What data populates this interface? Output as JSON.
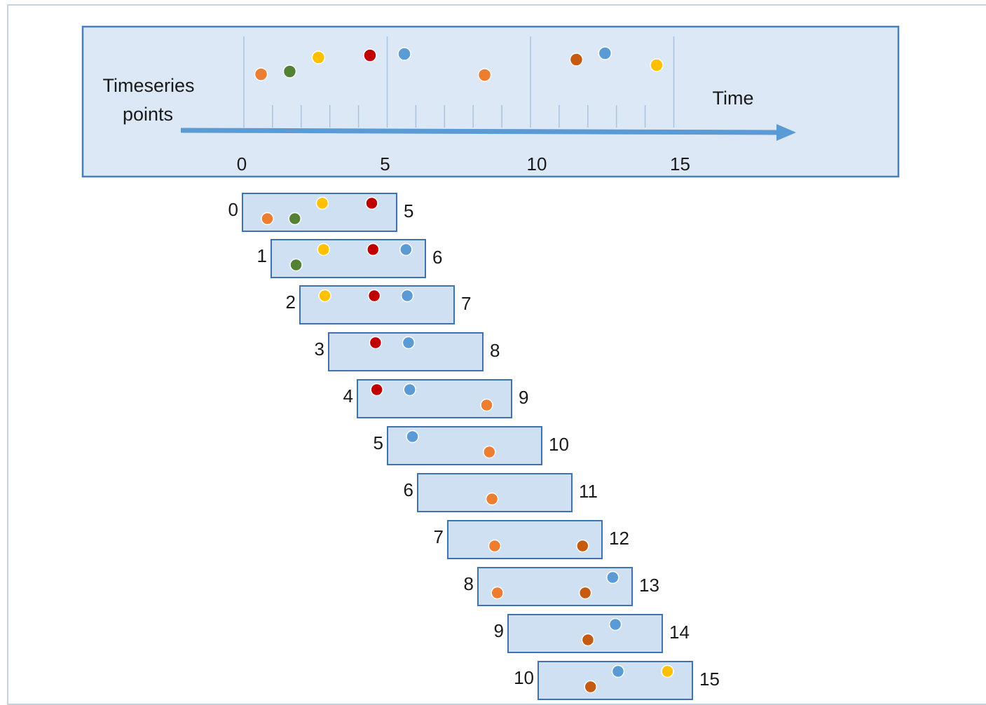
{
  "diagram": {
    "timeline_label": "Timeseries\npoints",
    "axis_label": "Time",
    "tick_labels": [
      "0",
      "5",
      "10",
      "15"
    ],
    "window_size": 5,
    "colors": {
      "panel_fill": "#dce8f5",
      "panel_border": "#4a7fbd",
      "window_fill": "#cfe0f2",
      "window_border": "#3e73b0",
      "axis_arrow": "#5b9bd5",
      "minor_tick": "#a9c3e0"
    },
    "point_colors": {
      "orange": "#ed7d31",
      "green": "#548235",
      "yellow": "#ffc000",
      "red": "#c00000",
      "blue": "#5b9bd5",
      "rust": "#c55a11"
    },
    "points": [
      {
        "time": 0.6,
        "color": "orange"
      },
      {
        "time": 1.6,
        "color": "green"
      },
      {
        "time": 2.6,
        "color": "yellow"
      },
      {
        "time": 4.4,
        "color": "red"
      },
      {
        "time": 5.6,
        "color": "blue"
      },
      {
        "time": 8.4,
        "color": "orange"
      },
      {
        "time": 11.6,
        "color": "rust"
      },
      {
        "time": 12.6,
        "color": "blue"
      },
      {
        "time": 14.4,
        "color": "yellow"
      }
    ],
    "windows": [
      {
        "start": "0",
        "end": "5"
      },
      {
        "start": "1",
        "end": "6"
      },
      {
        "start": "2",
        "end": "7"
      },
      {
        "start": "3",
        "end": "8"
      },
      {
        "start": "4",
        "end": "9"
      },
      {
        "start": "5",
        "end": "10"
      },
      {
        "start": "6",
        "end": "11"
      },
      {
        "start": "7",
        "end": "12"
      },
      {
        "start": "8",
        "end": "13"
      },
      {
        "start": "9",
        "end": "14"
      },
      {
        "start": "10",
        "end": "15"
      }
    ]
  }
}
